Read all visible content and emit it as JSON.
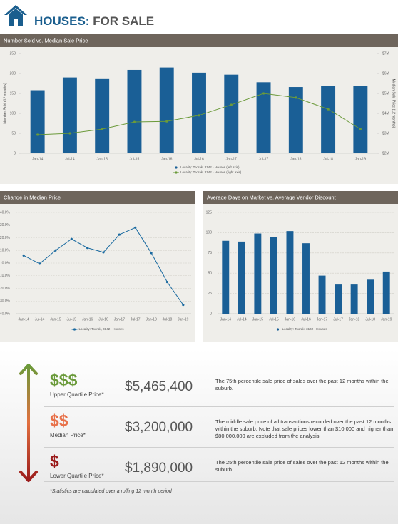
{
  "header": {
    "title": "HOUSES:",
    "subtitle": "FOR SALE"
  },
  "chart_data": [
    {
      "type": "bar",
      "title": "Number Sold vs. Median Sale Price",
      "ylabel": "Number Sold (12 months)",
      "y2label": "Median Sale Price (12 months)",
      "categories": [
        "Jan-14",
        "Jul-14",
        "Jan-15",
        "Jul-15",
        "Jan-16",
        "Jul-16",
        "Jan-17",
        "Jul-17",
        "Jan-18",
        "Jul-18",
        "Jan-19"
      ],
      "series": [
        {
          "name": "Locality: Toorak, 3142 - Houses (left axis)",
          "type": "bar",
          "color": "#1a5f96",
          "values": [
            158,
            190,
            186,
            209,
            215,
            202,
            197,
            178,
            166,
            168,
            168
          ]
        },
        {
          "name": "Locality: Toorak, 3142 - Houses (right axis)",
          "type": "line",
          "axis": "y2",
          "color": "#6b9a3a",
          "values": [
            2.93,
            3.0,
            3.21,
            3.57,
            3.6,
            3.9,
            4.43,
            5.0,
            4.79,
            4.21,
            3.21
          ]
        }
      ],
      "ylim": [
        0,
        250
      ],
      "yticks": [
        0,
        50,
        100,
        150,
        200,
        250
      ],
      "y2lim": [
        2,
        7
      ],
      "y2ticks": [
        {
          "value": 2,
          "label": "$2M"
        },
        {
          "value": 3,
          "label": "$3M"
        },
        {
          "value": 4,
          "label": "$4M"
        },
        {
          "value": 5,
          "label": "$5M"
        },
        {
          "value": 6,
          "label": "$6M"
        },
        {
          "value": 7,
          "label": "$7M"
        }
      ],
      "grid": false
    },
    {
      "type": "line",
      "title": "Change in Median Price",
      "categories": [
        "Jan-14",
        "Jul-14",
        "Jan-15",
        "Jul-15",
        "Jan-16",
        "Jul-16",
        "Jan-17",
        "Jul-17",
        "Jan-18",
        "Jul-18",
        "Jan-19"
      ],
      "series": [
        {
          "name": "Locality: Toorak, 3142 - Houses",
          "color": "#1a6aa0",
          "values": [
            6,
            -0.5,
            10,
            19,
            12,
            8.5,
            22.5,
            28,
            8,
            -15,
            -33
          ]
        }
      ],
      "ylim": [
        -40,
        40
      ],
      "yticks": [
        {
          "value": -40,
          "label": "-40.0%"
        },
        {
          "value": -30,
          "label": "-30.0%"
        },
        {
          "value": -20,
          "label": "-20.0%"
        },
        {
          "value": -10,
          "label": "-10.0%"
        },
        {
          "value": 0,
          "label": "0.0%"
        },
        {
          "value": 10,
          "label": "10.0%"
        },
        {
          "value": 20,
          "label": "20.0%"
        },
        {
          "value": 30,
          "label": "30.0%"
        },
        {
          "value": 40,
          "label": "40.0%"
        }
      ],
      "grid": true
    },
    {
      "type": "bar",
      "title": "Average Days on Market vs. Average Vendor Discount",
      "categories": [
        "Jan-14",
        "Jul-14",
        "Jan-15",
        "Jul-15",
        "Jan-16",
        "Jul-16",
        "Jan-17",
        "Jul-17",
        "Jan-18",
        "Jul-18",
        "Jan-19"
      ],
      "series": [
        {
          "name": "Locality: Toorak, 3142 - Houses",
          "color": "#1a5f96",
          "values": [
            90,
            89,
            99,
            95,
            102,
            87,
            47,
            36,
            36,
            42,
            52
          ]
        }
      ],
      "ylim": [
        0,
        125
      ],
      "yticks": [
        0,
        25,
        50,
        75,
        100,
        125
      ],
      "grid": true
    }
  ],
  "quartiles": [
    {
      "symbol": "$$$",
      "label": "Upper Quartile Price*",
      "value": "$5,465,400",
      "description": "The 75th percentile sale price of sales over the past 12 months within the suburb."
    },
    {
      "symbol": "$$",
      "label": "Median Price*",
      "value": "$3,200,000",
      "description": "The middle sale price of all transactions recorded over the past 12 months within the suburb. Note that sale prices lower than $10,000 and higher than $80,000,000 are excluded from the analysis."
    },
    {
      "symbol": "$",
      "label": "Lower Quartile Price*",
      "value": "$1,890,000",
      "description": "The 25th percentile sale price of sales over the past 12 months within the suburb."
    }
  ],
  "footnote": "*Statistics are calculated over a rolling 12 month period"
}
